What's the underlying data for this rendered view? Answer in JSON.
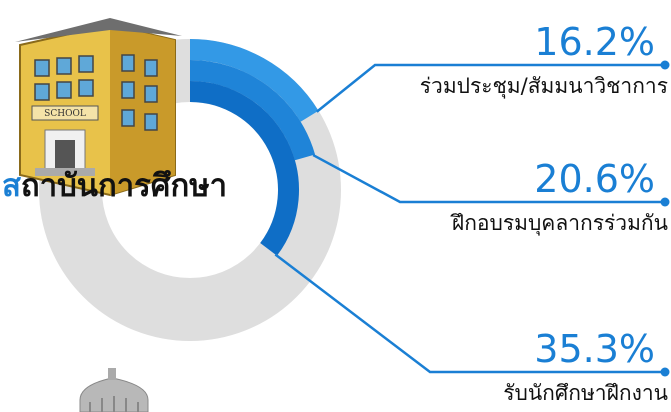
{
  "chart_data": {
    "type": "radial-bar",
    "title": "สถาบันการศึกษา",
    "categories": [
      "ร่วมประชุม/สัมมนาวิชาการ",
      "ฝึกอบรมบุคลากรร่วมกัน",
      "รับนักศึกษาฝึกงาน"
    ],
    "values": [
      16.2,
      20.6,
      35.3
    ],
    "value_labels": [
      "16.2%",
      "20.6%",
      "35.3%"
    ],
    "colors": [
      "#3399e6",
      "#1f84d8",
      "#0f6ec6"
    ],
    "track_color": "#dedede",
    "label_color": "#1a7fd4"
  }
}
